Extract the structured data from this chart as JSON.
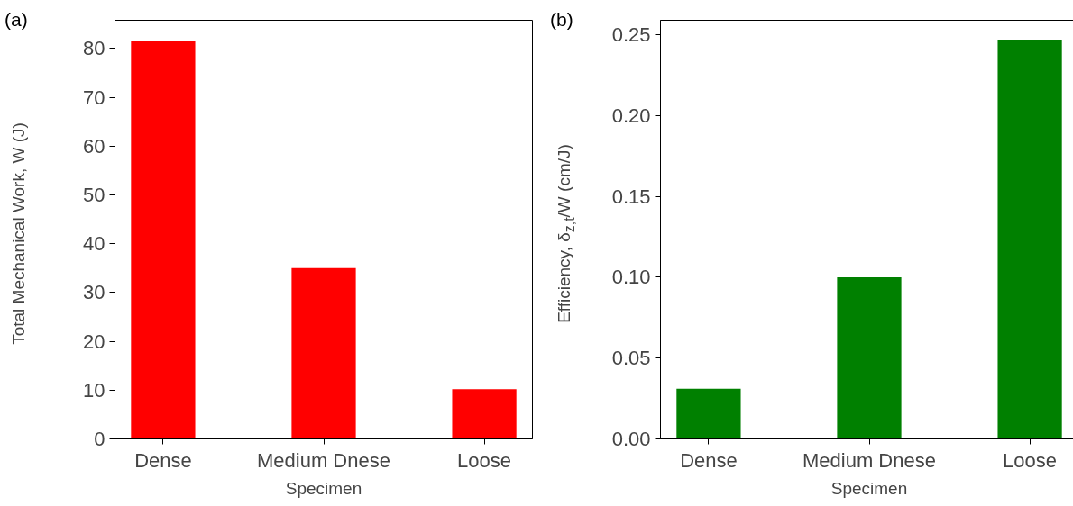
{
  "chart_data": [
    {
      "type": "bar",
      "title": "(a)",
      "categories": [
        "Dense",
        "Medium Dnese",
        "Loose"
      ],
      "xlabel": "Specimen",
      "ylabel": "Total Mechanical Work, W (J)",
      "values": [
        81.5,
        35,
        10.2
      ],
      "color": "#ff0000",
      "ylim": [
        0,
        85.8
      ],
      "yticks": [
        0,
        10,
        20,
        30,
        40,
        50,
        60,
        70,
        80
      ],
      "grid": false
    },
    {
      "type": "bar",
      "title": "(b)",
      "categories": [
        "Dense",
        "Medium Dnese",
        "Loose"
      ],
      "xlabel": "Specimen",
      "ylabel": "Efficiency, δ$_{z,t}$/W (cm/J)",
      "values": [
        0.031,
        0.1,
        0.247
      ],
      "color": "#008000",
      "ylim": [
        0,
        0.259
      ],
      "yticks": [
        {
          "value": 0,
          "label": "0.00"
        },
        {
          "value": 0.05,
          "label": "0.05"
        },
        {
          "value": 0.1,
          "label": "0.10"
        },
        {
          "value": 0.15,
          "label": "0.15"
        },
        {
          "value": 0.2,
          "label": "0.20"
        },
        {
          "value": 0.25,
          "label": "0.25"
        }
      ],
      "grid": false
    }
  ]
}
